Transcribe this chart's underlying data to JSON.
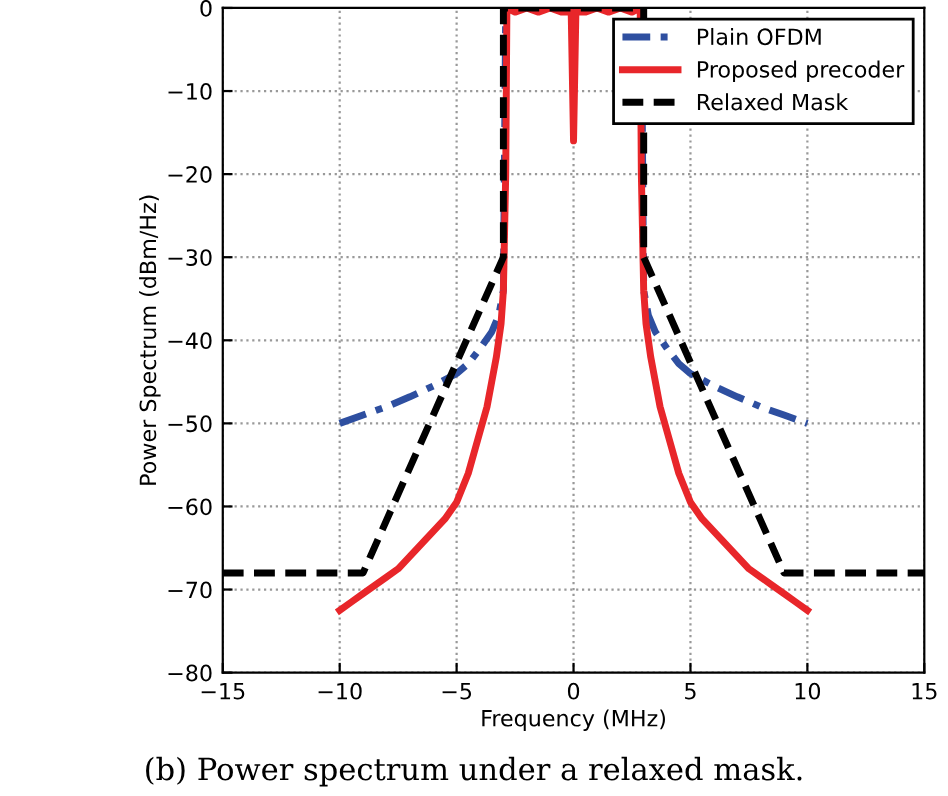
{
  "chart_data": {
    "type": "line",
    "xlabel": "Frequency (MHz)",
    "ylabel": "Power Spectrum (dBm/Hz)",
    "annotations": [
      "(b) Power spectrum under a relaxed mask."
    ],
    "xlim": [
      -15,
      15
    ],
    "ylim": [
      -80,
      0
    ],
    "xticks": [
      -15,
      -10,
      -5,
      0,
      5,
      10,
      15
    ],
    "yticks": [
      -80,
      -70,
      -60,
      -50,
      -40,
      -30,
      -20,
      -10,
      0
    ],
    "grid": true,
    "legend": "top right",
    "series": [
      {
        "name": "Plain OFDM",
        "color": "#2e4fa0",
        "line_style": "dashdot",
        "x": [
          -10,
          -9,
          -8,
          -7,
          -6,
          -5,
          -4.5,
          -4,
          -3.5,
          -3.2,
          -3,
          -2.9,
          2.9,
          3,
          3.2,
          3.5,
          4,
          4.5,
          5,
          6,
          7,
          8,
          9,
          10
        ],
        "values": [
          -50,
          -49,
          -48,
          -46.8,
          -45.5,
          -44,
          -42.8,
          -41,
          -39,
          -37,
          -34,
          0,
          0,
          -34,
          -37,
          -39,
          -41,
          -42.8,
          -44,
          -45.5,
          -46.8,
          -48,
          -49,
          -50
        ]
      },
      {
        "name": "Proposed precoder",
        "color": "#e8262a",
        "line_style": "solid",
        "x": [
          -10,
          -9.5,
          -9,
          -8.5,
          -8,
          -7.5,
          -7,
          -6.5,
          -6,
          -5.5,
          -5,
          -4.5,
          -4,
          -3.7,
          -3.5,
          -3.3,
          -3.1,
          -3,
          -2.9,
          -2.85,
          -2.5,
          -2,
          -1.5,
          -1,
          -0.5,
          -0.1,
          0,
          0.1,
          0.5,
          1,
          1.5,
          2,
          2.5,
          2.85,
          2.9,
          3,
          3.1,
          3.3,
          3.5,
          3.7,
          4,
          4.5,
          5,
          5.5,
          6,
          6.5,
          7,
          7.5,
          8,
          8.5,
          9,
          9.5,
          10
        ],
        "values": [
          -72.5,
          -71.5,
          -70.5,
          -69.5,
          -68.5,
          -67.5,
          -66,
          -64.5,
          -63,
          -61.5,
          -59.5,
          -56,
          -51,
          -48,
          -45,
          -42,
          -38,
          -34,
          -20,
          0,
          -0.5,
          0,
          -0.5,
          0,
          -0.5,
          -0.5,
          -16,
          -0.5,
          -0.5,
          0,
          -0.5,
          0,
          -0.5,
          0,
          -20,
          -34,
          -38,
          -42,
          -45,
          -48,
          -51,
          -56,
          -59.5,
          -61.5,
          -63,
          -64.5,
          -66,
          -67.5,
          -68.5,
          -69.5,
          -70.5,
          -71.5,
          -72.5
        ]
      },
      {
        "name": "Relaxed Mask",
        "color": "#000000",
        "line_style": "dashed",
        "x": [
          -15,
          -9,
          -3,
          -3,
          3,
          3,
          9,
          15
        ],
        "values": [
          -68,
          -68,
          -30,
          0,
          0,
          -30,
          -68,
          -68
        ]
      }
    ]
  }
}
